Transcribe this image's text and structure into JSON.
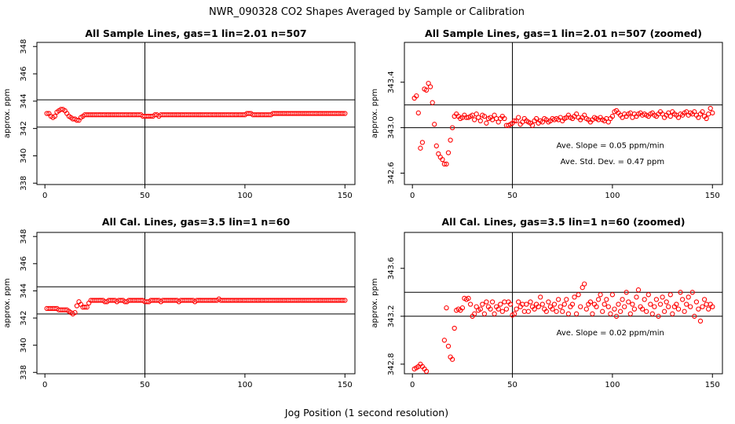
{
  "figure": {
    "title": "NWR_090328  CO2 Shapes Averaged by Sample or Calibration",
    "xlabel": "Jog Position (1 second resolution)"
  },
  "chart_data": [
    {
      "type": "scatter",
      "title": "All Sample Lines, gas=1 lin=2.01 n=507",
      "xlabel": "",
      "ylabel": "approx. ppm",
      "xlim": [
        -4,
        155
      ],
      "ylim": [
        337.9,
        348.3
      ],
      "x_ticks": [
        0,
        50,
        100,
        150
      ],
      "y_ticks": [
        338,
        340,
        342,
        344,
        346,
        348
      ],
      "grid": false,
      "hlines": [
        342.1,
        344.1
      ],
      "vlines": [
        50
      ],
      "color": "#ff0000",
      "annotations": [],
      "series": [
        {
          "x_start": 1,
          "x_step": 1,
          "values": [
            343.1,
            343.1,
            342.9,
            342.8,
            342.9,
            343.2,
            343.3,
            343.4,
            343.4,
            343.3,
            343.1,
            342.9,
            342.8,
            342.7,
            342.7,
            342.6,
            342.6,
            342.8,
            342.9,
            343.0,
            343.0,
            343.0,
            343.0,
            343.0,
            343.0,
            343.0,
            343.0,
            343.0,
            343.0,
            343.0,
            343.0,
            343.0,
            343.0,
            343.0,
            343.0,
            343.0,
            343.0,
            343.0,
            343.0,
            343.0,
            343.0,
            343.0,
            343.0,
            343.0,
            343.0,
            343.0,
            343.0,
            343.0,
            342.9,
            342.9,
            342.9,
            342.9,
            342.9,
            342.9,
            343.0,
            343.0,
            342.9,
            343.0,
            343.0,
            343.0,
            343.0,
            343.0,
            343.0,
            343.0,
            343.0,
            343.0,
            343.0,
            343.0,
            343.0,
            343.0,
            343.0,
            343.0,
            343.0,
            343.0,
            343.0,
            343.0,
            343.0,
            343.0,
            343.0,
            343.0,
            343.0,
            343.0,
            343.0,
            343.0,
            343.0,
            343.0,
            343.0,
            343.0,
            343.0,
            343.0,
            343.0,
            343.0,
            343.0,
            343.0,
            343.0,
            343.0,
            343.0,
            343.0,
            343.0,
            343.0,
            343.1,
            343.1,
            343.1,
            343.0,
            343.0,
            343.0,
            343.0,
            343.0,
            343.0,
            343.0,
            343.0,
            343.0,
            343.0,
            343.1,
            343.1,
            343.1,
            343.1,
            343.1,
            343.1,
            343.1,
            343.1,
            343.1,
            343.1,
            343.1,
            343.1,
            343.1,
            343.1,
            343.1,
            343.1,
            343.1,
            343.1,
            343.1,
            343.1,
            343.1,
            343.1,
            343.1,
            343.1,
            343.1,
            343.1,
            343.1,
            343.1,
            343.1,
            343.1,
            343.1,
            343.1,
            343.1,
            343.1,
            343.1,
            343.1,
            343.1
          ]
        }
      ]
    },
    {
      "type": "scatter",
      "title": "All Sample Lines, gas=1 lin=2.01 n=507 (zoomed)",
      "xlabel": "",
      "ylabel": "approx. ppm",
      "xlim": [
        -4,
        155
      ],
      "ylim": [
        342.5,
        343.75
      ],
      "x_ticks": [
        0,
        50,
        100,
        150
      ],
      "y_ticks": [
        342.6,
        343.0,
        343.4
      ],
      "grid": false,
      "hlines": [
        343.0,
        343.2
      ],
      "vlines": [
        50
      ],
      "color": "#ff0000",
      "annotations": [
        {
          "text": "Ave. Slope =  0.05  ppm/min",
          "x": 72,
          "y": 342.82
        },
        {
          "text": "Ave. Std. Dev. =  0.47  ppm",
          "x": 74,
          "y": 342.68
        }
      ],
      "series": [
        {
          "x_start": 1,
          "x_step": 1,
          "values": [
            343.26,
            343.28,
            343.13,
            342.82,
            342.87,
            343.34,
            343.33,
            343.39,
            343.36,
            343.22,
            343.03,
            342.84,
            342.77,
            342.74,
            342.72,
            342.68,
            342.68,
            342.78,
            342.89,
            343.0,
            343.1,
            343.12,
            343.1,
            343.08,
            343.09,
            343.11,
            343.09,
            343.09,
            343.1,
            343.11,
            343.07,
            343.12,
            343.09,
            343.06,
            343.11,
            343.1,
            343.04,
            343.08,
            343.09,
            343.07,
            343.11,
            343.08,
            343.05,
            343.08,
            343.1,
            343.08,
            343.02,
            343.02,
            343.03,
            343.04,
            343.06,
            343.06,
            343.09,
            343.03,
            343.05,
            343.08,
            343.06,
            343.05,
            343.04,
            343.02,
            343.06,
            343.08,
            343.04,
            343.06,
            343.05,
            343.08,
            343.07,
            343.05,
            343.06,
            343.08,
            343.07,
            343.08,
            343.07,
            343.09,
            343.06,
            343.08,
            343.09,
            343.11,
            343.09,
            343.08,
            343.1,
            343.12,
            343.09,
            343.07,
            343.09,
            343.11,
            343.08,
            343.07,
            343.05,
            343.07,
            343.09,
            343.08,
            343.07,
            343.09,
            343.07,
            343.06,
            343.08,
            343.05,
            343.08,
            343.1,
            343.14,
            343.15,
            343.13,
            343.11,
            343.09,
            343.12,
            343.1,
            343.12,
            343.13,
            343.09,
            343.12,
            343.1,
            343.12,
            343.13,
            343.11,
            343.12,
            343.11,
            343.1,
            343.12,
            343.13,
            343.11,
            343.1,
            343.12,
            343.14,
            343.12,
            343.09,
            343.11,
            343.13,
            343.1,
            343.14,
            343.12,
            343.11,
            343.09,
            343.12,
            343.11,
            343.13,
            343.14,
            343.11,
            343.13,
            343.12,
            343.14,
            343.11,
            343.09,
            343.12,
            343.14,
            343.1,
            343.08,
            343.12,
            343.17,
            343.13
          ]
        }
      ]
    },
    {
      "type": "scatter",
      "title": "All Cal. Lines, gas=3.5 lin=1 n=60",
      "xlabel": "",
      "ylabel": "approx. ppm",
      "xlim": [
        -4,
        155
      ],
      "ylim": [
        337.9,
        348.3
      ],
      "x_ticks": [
        0,
        50,
        100,
        150
      ],
      "y_ticks": [
        338,
        340,
        342,
        344,
        346,
        348
      ],
      "grid": false,
      "hlines": [
        342.3,
        344.3
      ],
      "vlines": [
        50
      ],
      "color": "#ff0000",
      "annotations": [],
      "series": [
        {
          "x_start": 1,
          "x_step": 1,
          "values": [
            342.7,
            342.7,
            342.7,
            342.7,
            342.7,
            342.7,
            342.6,
            342.6,
            342.6,
            342.6,
            342.6,
            342.5,
            342.4,
            342.3,
            342.4,
            342.9,
            343.2,
            343.0,
            342.8,
            342.8,
            342.8,
            343.1,
            343.3,
            343.3,
            343.3,
            343.3,
            343.3,
            343.3,
            343.3,
            343.2,
            343.2,
            343.3,
            343.3,
            343.3,
            343.3,
            343.2,
            343.3,
            343.3,
            343.3,
            343.2,
            343.2,
            343.3,
            343.3,
            343.3,
            343.3,
            343.3,
            343.3,
            343.3,
            343.3,
            343.2,
            343.2,
            343.2,
            343.3,
            343.3,
            343.3,
            343.3,
            343.3,
            343.2,
            343.3,
            343.3,
            343.3,
            343.3,
            343.3,
            343.3,
            343.3,
            343.3,
            343.2,
            343.3,
            343.3,
            343.3,
            343.3,
            343.3,
            343.3,
            343.3,
            343.2,
            343.3,
            343.3,
            343.3,
            343.3,
            343.3,
            343.3,
            343.3,
            343.3,
            343.3,
            343.3,
            343.3,
            343.4,
            343.3,
            343.3,
            343.3,
            343.3,
            343.3,
            343.3,
            343.3,
            343.3,
            343.3,
            343.3,
            343.3,
            343.3,
            343.3,
            343.3,
            343.3,
            343.3,
            343.3,
            343.3,
            343.3,
            343.3,
            343.3,
            343.3,
            343.3,
            343.3,
            343.3,
            343.3,
            343.3,
            343.3,
            343.3,
            343.3,
            343.3,
            343.3,
            343.3,
            343.3,
            343.3,
            343.3,
            343.3,
            343.3,
            343.3,
            343.3,
            343.3,
            343.3,
            343.3,
            343.3,
            343.3,
            343.3,
            343.3,
            343.3,
            343.3,
            343.3,
            343.3,
            343.3,
            343.3,
            343.3,
            343.3,
            343.3,
            343.3,
            343.3,
            343.3,
            343.3,
            343.3,
            343.3,
            343.3
          ]
        }
      ]
    },
    {
      "type": "scatter",
      "title": "All Cal. Lines, gas=3.5 lin=1 n=60 (zoomed)",
      "xlabel": "",
      "ylabel": "approx. ppm",
      "xlim": [
        -4,
        155
      ],
      "ylim": [
        342.72,
        343.9
      ],
      "x_ticks": [
        0,
        50,
        100,
        150
      ],
      "y_ticks": [
        342.8,
        343.2,
        343.6
      ],
      "grid": false,
      "hlines": [
        343.2,
        343.4
      ],
      "vlines": [
        50
      ],
      "color": "#ff0000",
      "annotations": [
        {
          "text": "Ave. Slope =  0.02  ppm/min",
          "x": 72,
          "y": 343.04
        }
      ],
      "series": [
        {
          "x_start": 1,
          "x_step": 1,
          "values": [
            342.76,
            342.77,
            342.78,
            342.8,
            342.78,
            342.76,
            342.74,
            342.72,
            342.7,
            342.68,
            342.66,
            342.62,
            342.58,
            342.55,
            342.62,
            343.0,
            343.27,
            342.95,
            342.86,
            342.84,
            343.1,
            343.25,
            343.26,
            343.25,
            343.27,
            343.35,
            343.34,
            343.35,
            343.3,
            343.2,
            343.22,
            343.28,
            343.25,
            343.26,
            343.3,
            343.22,
            343.32,
            343.28,
            343.26,
            343.32,
            343.22,
            343.28,
            343.26,
            343.3,
            343.24,
            343.32,
            343.26,
            343.32,
            343.3,
            343.21,
            343.22,
            343.26,
            343.32,
            343.28,
            343.3,
            343.24,
            343.3,
            343.24,
            343.32,
            343.28,
            343.26,
            343.3,
            343.28,
            343.36,
            343.3,
            343.26,
            343.24,
            343.32,
            343.28,
            343.26,
            343.3,
            343.24,
            343.34,
            343.28,
            343.24,
            343.3,
            343.34,
            343.22,
            343.28,
            343.3,
            343.36,
            343.22,
            343.38,
            343.28,
            343.44,
            343.47,
            343.26,
            343.3,
            343.32,
            343.22,
            343.3,
            343.28,
            343.34,
            343.38,
            343.24,
            343.3,
            343.34,
            343.28,
            343.22,
            343.38,
            343.26,
            343.2,
            343.3,
            343.24,
            343.34,
            343.28,
            343.4,
            343.32,
            343.22,
            343.3,
            343.26,
            343.36,
            343.42,
            343.28,
            343.26,
            343.34,
            343.24,
            343.38,
            343.3,
            343.22,
            343.28,
            343.34,
            343.2,
            343.3,
            343.36,
            343.24,
            343.32,
            343.28,
            343.38,
            343.22,
            343.28,
            343.3,
            343.26,
            343.4,
            343.34,
            343.24,
            343.3,
            343.36,
            343.28,
            343.4,
            343.2,
            343.32,
            343.26,
            343.16,
            343.28,
            343.34,
            343.3,
            343.26,
            343.3,
            343.28
          ]
        }
      ]
    }
  ]
}
